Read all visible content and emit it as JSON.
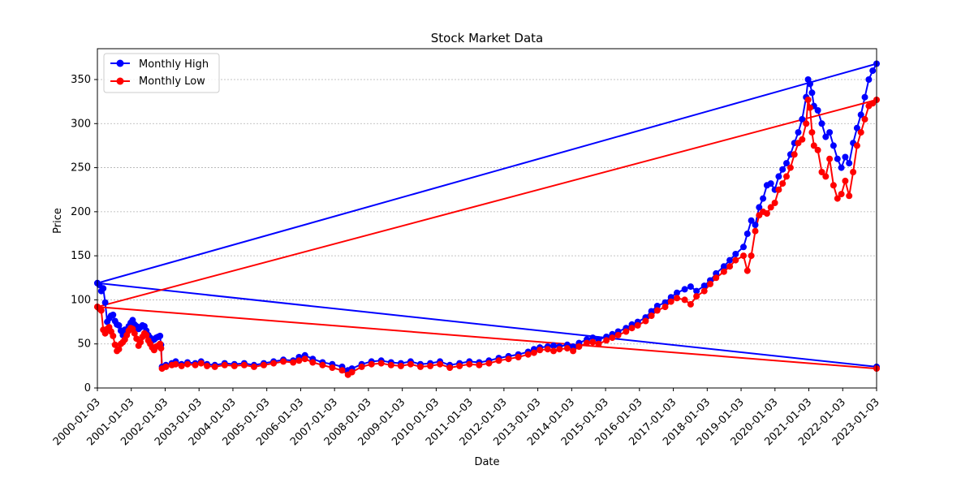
{
  "chart_data": {
    "type": "line",
    "title": "Stock Market Data",
    "xlabel": "Date",
    "ylabel": "Price",
    "ylim": [
      0,
      385
    ],
    "y_ticks": [
      0,
      50,
      100,
      150,
      200,
      250,
      300,
      350
    ],
    "x_ticks": [
      "2000-01-03",
      "2001-01-03",
      "2002-01-03",
      "2003-01-03",
      "2004-01-03",
      "2005-01-03",
      "2006-01-03",
      "2007-01-03",
      "2008-01-03",
      "2009-01-03",
      "2010-01-03",
      "2011-01-03",
      "2012-01-03",
      "2013-01-03",
      "2014-01-03",
      "2015-01-03",
      "2016-01-03",
      "2017-01-03",
      "2018-01-03",
      "2019-01-03",
      "2020-01-03",
      "2021-01-03",
      "2022-01-03",
      "2023-01-03"
    ],
    "grid": "horizontal dashed",
    "legend_position": "top-left",
    "legend": [
      "Monthly High",
      "Monthly Low"
    ],
    "colors": {
      "high": "#0000ff",
      "low": "#ff0000",
      "grid": "#b0b0b0"
    },
    "series": [
      {
        "name": "Monthly High",
        "color": "#0000ff",
        "points": [
          [
            2000.0,
            119
          ],
          [
            2000.1,
            117
          ],
          [
            2000.2,
            110
          ],
          [
            2000.3,
            113
          ],
          [
            2000.4,
            97
          ],
          [
            2000.5,
            75
          ],
          [
            2000.6,
            79
          ],
          [
            2000.7,
            82
          ],
          [
            2000.8,
            83
          ],
          [
            2000.9,
            76
          ],
          [
            2001.0,
            72
          ],
          [
            2001.1,
            71
          ],
          [
            2001.2,
            65
          ],
          [
            2001.3,
            60
          ],
          [
            2001.4,
            66
          ],
          [
            2001.5,
            63
          ],
          [
            2001.6,
            70
          ],
          [
            2001.7,
            74
          ],
          [
            2001.8,
            77
          ],
          [
            2001.9,
            72
          ],
          [
            2002.0,
            70
          ],
          [
            2002.1,
            67
          ],
          [
            2002.2,
            69
          ],
          [
            2002.3,
            71
          ],
          [
            2002.4,
            70
          ],
          [
            2002.5,
            65
          ],
          [
            2002.6,
            60
          ],
          [
            2002.7,
            57
          ],
          [
            2002.8,
            54
          ],
          [
            2002.9,
            55
          ],
          [
            2003.0,
            57
          ],
          [
            2003.1,
            58
          ],
          [
            2003.2,
            59
          ],
          [
            2003.25,
            49
          ],
          [
            2003.3,
            24
          ],
          [
            2003.5,
            26
          ],
          [
            2003.8,
            28
          ],
          [
            2004.0,
            30
          ],
          [
            2004.3,
            27
          ],
          [
            2004.6,
            29
          ],
          [
            2005.0,
            28
          ],
          [
            2005.3,
            30
          ],
          [
            2005.6,
            27
          ],
          [
            2006.0,
            26
          ],
          [
            2006.5,
            28
          ],
          [
            2007.0,
            27
          ],
          [
            2007.5,
            28
          ],
          [
            2008.0,
            26
          ],
          [
            2008.5,
            28
          ],
          [
            2009.0,
            30
          ],
          [
            2009.5,
            32
          ],
          [
            2010.0,
            31
          ],
          [
            2010.3,
            35
          ],
          [
            2010.6,
            37
          ],
          [
            2011.0,
            33
          ],
          [
            2011.5,
            29
          ],
          [
            2012.0,
            27
          ],
          [
            2012.5,
            24
          ],
          [
            2012.8,
            20
          ],
          [
            2013.0,
            22
          ],
          [
            2013.5,
            27
          ],
          [
            2014.0,
            30
          ],
          [
            2014.5,
            31
          ],
          [
            2015.0,
            29
          ],
          [
            2015.5,
            28
          ],
          [
            2016.0,
            30
          ],
          [
            2016.5,
            27
          ],
          [
            2017.0,
            28
          ],
          [
            2017.5,
            30
          ],
          [
            2018.0,
            26
          ],
          [
            2018.5,
            28
          ],
          [
            2019.0,
            30
          ],
          [
            2019.5,
            29
          ],
          [
            2020.0,
            31
          ],
          [
            2020.5,
            34
          ],
          [
            2021.0,
            36
          ],
          [
            2021.5,
            38
          ],
          [
            2022.0,
            41
          ],
          [
            2022.3,
            44
          ],
          [
            2022.6,
            46
          ],
          [
            2023.0,
            47
          ],
          [
            2023.3,
            48
          ],
          [
            2023.6,
            47
          ],
          [
            2024.0,
            49
          ],
          [
            2024.3,
            47
          ],
          [
            2024.6,
            51
          ],
          [
            2025.0,
            55
          ],
          [
            2025.3,
            57
          ],
          [
            2025.6,
            55
          ],
          [
            2026.0,
            58
          ],
          [
            2026.3,
            61
          ],
          [
            2026.6,
            64
          ],
          [
            2027.0,
            68
          ],
          [
            2027.3,
            72
          ],
          [
            2027.6,
            75
          ],
          [
            2028.0,
            80
          ],
          [
            2028.3,
            87
          ],
          [
            2028.6,
            93
          ],
          [
            2029.0,
            97
          ],
          [
            2029.3,
            103
          ],
          [
            2029.6,
            108
          ],
          [
            2030.0,
            112
          ],
          [
            2030.3,
            115
          ],
          [
            2030.6,
            110
          ],
          [
            2031.0,
            116
          ],
          [
            2031.3,
            122
          ],
          [
            2031.6,
            130
          ],
          [
            2032.0,
            138
          ],
          [
            2032.3,
            145
          ],
          [
            2032.6,
            152
          ],
          [
            2033.0,
            160
          ],
          [
            2033.2,
            175
          ],
          [
            2033.4,
            190
          ],
          [
            2033.6,
            185
          ],
          [
            2033.8,
            205
          ],
          [
            2034.0,
            215
          ],
          [
            2034.2,
            230
          ],
          [
            2034.4,
            232
          ],
          [
            2034.6,
            225
          ],
          [
            2034.8,
            240
          ],
          [
            2035.0,
            248
          ],
          [
            2035.2,
            255
          ],
          [
            2035.4,
            265
          ],
          [
            2035.6,
            278
          ],
          [
            2035.8,
            290
          ],
          [
            2036.0,
            305
          ],
          [
            2036.2,
            330
          ],
          [
            2036.3,
            350
          ],
          [
            2036.4,
            345
          ],
          [
            2036.5,
            335
          ],
          [
            2036.6,
            320
          ],
          [
            2036.8,
            315
          ],
          [
            2037.0,
            300
          ],
          [
            2037.2,
            285
          ],
          [
            2037.4,
            290
          ],
          [
            2037.6,
            275
          ],
          [
            2037.8,
            260
          ],
          [
            2038.0,
            250
          ],
          [
            2038.2,
            262
          ],
          [
            2038.4,
            255
          ],
          [
            2038.6,
            278
          ],
          [
            2038.8,
            295
          ],
          [
            2039.0,
            310
          ],
          [
            2039.2,
            330
          ],
          [
            2039.4,
            350
          ],
          [
            2039.6,
            360
          ],
          [
            2039.8,
            368
          ],
          [
            2000.0,
            119
          ],
          [
            2039.8,
            24
          ]
        ]
      },
      {
        "name": "Monthly Low",
        "color": "#ff0000",
        "points": [
          [
            2000.0,
            92
          ],
          [
            2000.1,
            90
          ],
          [
            2000.2,
            88
          ],
          [
            2000.3,
            66
          ],
          [
            2000.4,
            62
          ],
          [
            2000.5,
            67
          ],
          [
            2000.6,
            69
          ],
          [
            2000.7,
            64
          ],
          [
            2000.8,
            59
          ],
          [
            2000.9,
            49
          ],
          [
            2001.0,
            42
          ],
          [
            2001.1,
            44
          ],
          [
            2001.2,
            50
          ],
          [
            2001.3,
            52
          ],
          [
            2001.4,
            55
          ],
          [
            2001.5,
            60
          ],
          [
            2001.6,
            65
          ],
          [
            2001.7,
            68
          ],
          [
            2001.8,
            67
          ],
          [
            2001.9,
            62
          ],
          [
            2002.0,
            56
          ],
          [
            2002.1,
            48
          ],
          [
            2002.2,
            52
          ],
          [
            2002.3,
            58
          ],
          [
            2002.4,
            62
          ],
          [
            2002.5,
            60
          ],
          [
            2002.6,
            54
          ],
          [
            2002.7,
            50
          ],
          [
            2002.8,
            46
          ],
          [
            2002.9,
            43
          ],
          [
            2003.0,
            47
          ],
          [
            2003.1,
            48
          ],
          [
            2003.2,
            50
          ],
          [
            2003.25,
            45
          ],
          [
            2003.3,
            22
          ],
          [
            2003.5,
            24
          ],
          [
            2003.8,
            26
          ],
          [
            2004.0,
            27
          ],
          [
            2004.3,
            25
          ],
          [
            2004.6,
            27
          ],
          [
            2005.0,
            26
          ],
          [
            2005.3,
            28
          ],
          [
            2005.6,
            25
          ],
          [
            2006.0,
            24
          ],
          [
            2006.5,
            26
          ],
          [
            2007.0,
            25
          ],
          [
            2007.5,
            26
          ],
          [
            2008.0,
            24
          ],
          [
            2008.5,
            26
          ],
          [
            2009.0,
            28
          ],
          [
            2009.5,
            30
          ],
          [
            2010.0,
            29
          ],
          [
            2010.3,
            31
          ],
          [
            2010.6,
            33
          ],
          [
            2011.0,
            29
          ],
          [
            2011.5,
            26
          ],
          [
            2012.0,
            23
          ],
          [
            2012.5,
            20
          ],
          [
            2012.8,
            15
          ],
          [
            2013.0,
            18
          ],
          [
            2013.5,
            24
          ],
          [
            2014.0,
            27
          ],
          [
            2014.5,
            28
          ],
          [
            2015.0,
            26
          ],
          [
            2015.5,
            25
          ],
          [
            2016.0,
            27
          ],
          [
            2016.5,
            24
          ],
          [
            2017.0,
            25
          ],
          [
            2017.5,
            27
          ],
          [
            2018.0,
            23
          ],
          [
            2018.5,
            25
          ],
          [
            2019.0,
            27
          ],
          [
            2019.5,
            26
          ],
          [
            2020.0,
            28
          ],
          [
            2020.5,
            31
          ],
          [
            2021.0,
            33
          ],
          [
            2021.5,
            35
          ],
          [
            2022.0,
            38
          ],
          [
            2022.3,
            40
          ],
          [
            2022.6,
            43
          ],
          [
            2023.0,
            44
          ],
          [
            2023.3,
            42
          ],
          [
            2023.6,
            44
          ],
          [
            2024.0,
            45
          ],
          [
            2024.3,
            42
          ],
          [
            2024.6,
            47
          ],
          [
            2025.0,
            51
          ],
          [
            2025.3,
            52
          ],
          [
            2025.6,
            50
          ],
          [
            2026.0,
            54
          ],
          [
            2026.3,
            57
          ],
          [
            2026.6,
            60
          ],
          [
            2027.0,
            64
          ],
          [
            2027.3,
            68
          ],
          [
            2027.6,
            71
          ],
          [
            2028.0,
            76
          ],
          [
            2028.3,
            82
          ],
          [
            2028.6,
            88
          ],
          [
            2029.0,
            92
          ],
          [
            2029.3,
            98
          ],
          [
            2029.6,
            102
          ],
          [
            2030.0,
            100
          ],
          [
            2030.3,
            95
          ],
          [
            2030.6,
            104
          ],
          [
            2031.0,
            110
          ],
          [
            2031.3,
            118
          ],
          [
            2031.6,
            125
          ],
          [
            2032.0,
            132
          ],
          [
            2032.3,
            138
          ],
          [
            2032.6,
            145
          ],
          [
            2033.0,
            150
          ],
          [
            2033.2,
            133
          ],
          [
            2033.4,
            150
          ],
          [
            2033.6,
            178
          ],
          [
            2033.8,
            196
          ],
          [
            2034.0,
            200
          ],
          [
            2034.2,
            198
          ],
          [
            2034.4,
            205
          ],
          [
            2034.6,
            210
          ],
          [
            2034.8,
            225
          ],
          [
            2035.0,
            232
          ],
          [
            2035.2,
            240
          ],
          [
            2035.4,
            250
          ],
          [
            2035.6,
            265
          ],
          [
            2035.8,
            278
          ],
          [
            2036.0,
            282
          ],
          [
            2036.2,
            300
          ],
          [
            2036.3,
            327
          ],
          [
            2036.4,
            318
          ],
          [
            2036.5,
            290
          ],
          [
            2036.6,
            275
          ],
          [
            2036.8,
            270
          ],
          [
            2037.0,
            245
          ],
          [
            2037.2,
            240
          ],
          [
            2037.4,
            260
          ],
          [
            2037.6,
            230
          ],
          [
            2037.8,
            215
          ],
          [
            2038.0,
            220
          ],
          [
            2038.2,
            235
          ],
          [
            2038.4,
            218
          ],
          [
            2038.6,
            245
          ],
          [
            2038.8,
            275
          ],
          [
            2039.0,
            290
          ],
          [
            2039.2,
            305
          ],
          [
            2039.4,
            320
          ],
          [
            2039.6,
            323
          ],
          [
            2039.8,
            327
          ],
          [
            2000.0,
            92
          ],
          [
            2039.8,
            22
          ]
        ]
      }
    ]
  }
}
